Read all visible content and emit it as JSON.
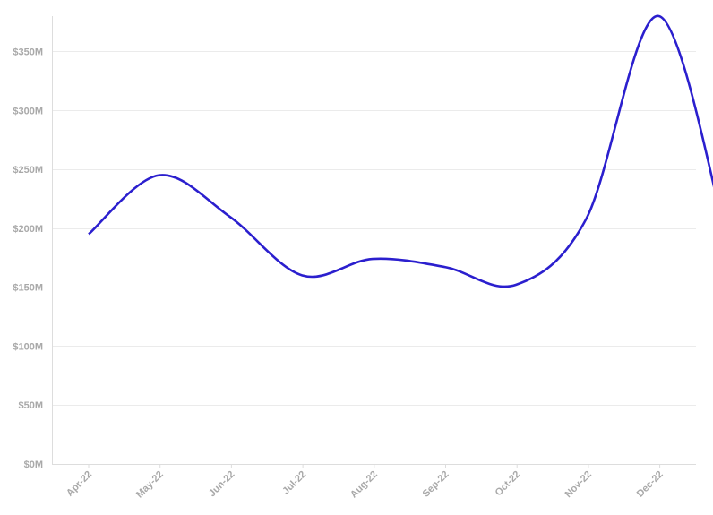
{
  "chart_data": {
    "type": "line",
    "title": "",
    "xlabel": "",
    "ylabel": "",
    "categories": [
      "Apr-22",
      "May-22",
      "Jun-22",
      "Jul-22",
      "Aug-22",
      "Sep-22",
      "Oct-22",
      "Nov-22",
      "Dec-22"
    ],
    "y_tick_labels": [
      "$0M",
      "$50M",
      "$100M",
      "$150M",
      "$200M",
      "$250M",
      "$300M",
      "$350M"
    ],
    "y_ticks": [
      0,
      50,
      100,
      150,
      200,
      250,
      300,
      350
    ],
    "ylim": [
      0,
      380
    ],
    "grid": "horizontal",
    "series": [
      {
        "color": "#2b1fce",
        "x": [
          "2022-04-01",
          "2022-05-01",
          "2022-05-31",
          "2022-07-01",
          "2022-07-31",
          "2022-08-31",
          "2022-09-30",
          "2022-10-30",
          "2022-11-30",
          "2022-12-30"
        ],
        "values": [
          195,
          245,
          210,
          160,
          174,
          167,
          152,
          208,
          380,
          180
        ]
      }
    ]
  }
}
